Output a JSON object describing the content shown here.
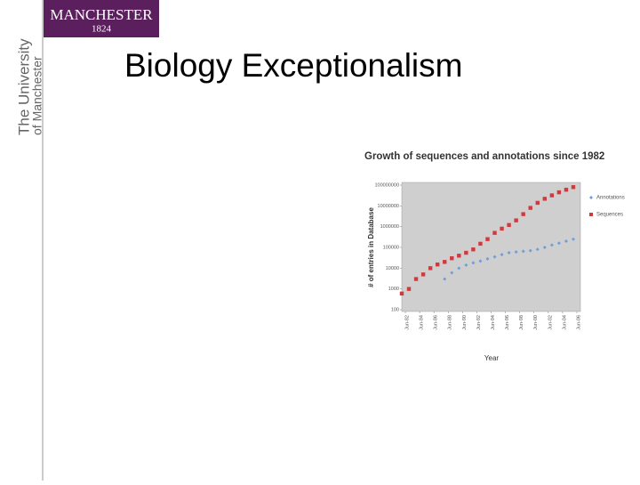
{
  "logo": {
    "name": "MANCHESTER",
    "year": "1824"
  },
  "sidebar": [
    "The University",
    "of Manchester"
  ],
  "slide_title": "Biology Exceptionalism",
  "chart_data": {
    "type": "scatter",
    "title": "Growth of sequences and annotations since 1982",
    "x_label": "Year",
    "y_label": "# of entries in Database",
    "log_y": true,
    "grid": false,
    "legend": "right",
    "xlim": [
      1982,
      2007
    ],
    "xticks": [
      {
        "value": 1982.5,
        "label": "Jun-82"
      },
      {
        "value": 1984.5,
        "label": "Jun-84"
      },
      {
        "value": 1986.5,
        "label": "Jun-86"
      },
      {
        "value": 1988.5,
        "label": "Jun-88"
      },
      {
        "value": 1990.5,
        "label": "Jun-90"
      },
      {
        "value": 1992.5,
        "label": "Jun-92"
      },
      {
        "value": 1994.5,
        "label": "Jun-94"
      },
      {
        "value": 1996.5,
        "label": "Jun-96"
      },
      {
        "value": 1998.5,
        "label": "Jun-98"
      },
      {
        "value": 2000.5,
        "label": "Jun-00"
      },
      {
        "value": 2002.5,
        "label": "Jun-02"
      },
      {
        "value": 2004.5,
        "label": "Jun-04"
      },
      {
        "value": 2006.5,
        "label": "Jun-06"
      }
    ],
    "ylim": [
      100,
      100000000
    ],
    "yticks": [
      100,
      1000,
      10000,
      100000,
      1000000,
      10000000,
      100000000
    ],
    "series": [
      {
        "name": "Annotations",
        "color": "#6f9fd8",
        "marker": "diamond",
        "x": [
          1988,
          1989,
          1990,
          1991,
          1992,
          1993,
          1994,
          1995,
          1996,
          1997,
          1998,
          1999,
          2000,
          2001,
          2002,
          2003,
          2004,
          2005,
          2006
        ],
        "values": [
          3000,
          6000,
          10000,
          14000,
          18000,
          22000,
          28000,
          35000,
          45000,
          55000,
          60000,
          65000,
          70000,
          80000,
          100000,
          130000,
          160000,
          200000,
          250000
        ]
      },
      {
        "name": "Sequences",
        "color": "#d0393e",
        "marker": "square",
        "x": [
          1982,
          1983,
          1984,
          1985,
          1986,
          1987,
          1988,
          1989,
          1990,
          1991,
          1992,
          1993,
          1994,
          1995,
          1996,
          1997,
          1998,
          1999,
          2000,
          2001,
          2002,
          2003,
          2004,
          2005,
          2006
        ],
        "values": [
          600,
          1000,
          3000,
          5000,
          10000,
          15000,
          20000,
          30000,
          40000,
          55000,
          80000,
          150000,
          250000,
          500000,
          800000,
          1200000,
          2000000,
          4000000,
          8000000,
          14000000,
          22000000,
          32000000,
          45000000,
          60000000,
          80000000
        ]
      }
    ]
  }
}
